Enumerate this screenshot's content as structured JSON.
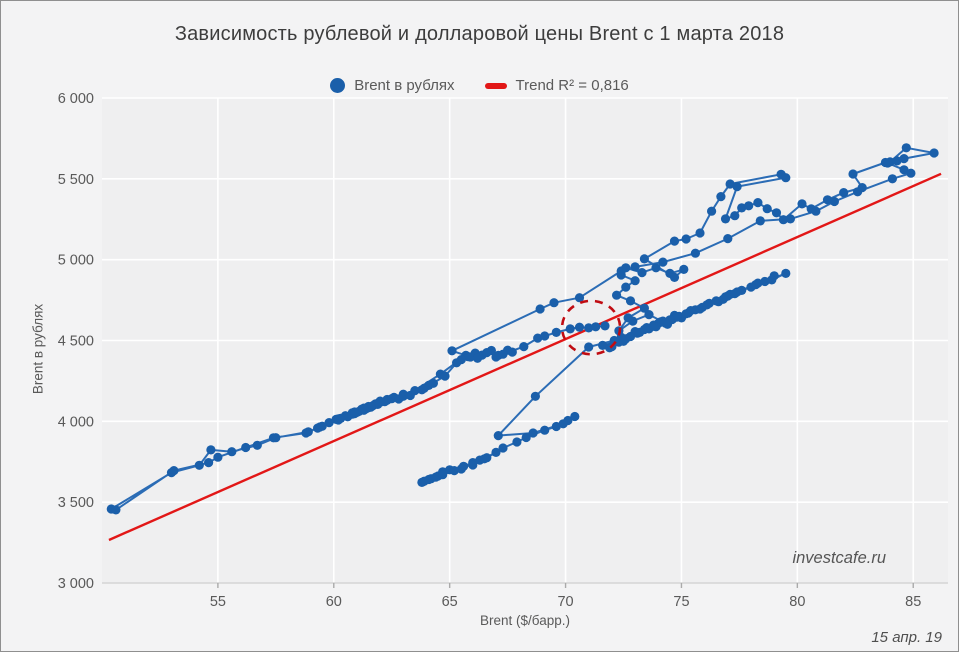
{
  "title": "Зависимость рублевой и долларовой цены Brent с 1 марта 2018",
  "watermark": "investcafe.ru",
  "date_note": "15 апр. 19",
  "chart_data": {
    "type": "scatter",
    "title": "Зависимость рублевой и долларовой цены Brent с 1 марта 2018",
    "xlabel": "Brent ($/барр.)",
    "ylabel": "Brent в рублях",
    "xlim": [
      50,
      86.5
    ],
    "ylim": [
      3000,
      6000
    ],
    "grid": true,
    "legend_position": "top-center",
    "xticks": [
      55,
      60,
      65,
      70,
      75,
      80,
      85
    ],
    "yticks": [
      {
        "v": 3000,
        "label": "3 000"
      },
      {
        "v": 3500,
        "label": "3 500"
      },
      {
        "v": 4000,
        "label": "4 000"
      },
      {
        "v": 4500,
        "label": "4 500"
      },
      {
        "v": 5000,
        "label": "5 000"
      },
      {
        "v": 5500,
        "label": "5 500"
      },
      {
        "v": 6000,
        "label": "6 000"
      }
    ],
    "legend": [
      {
        "label": "Brent в рублях",
        "marker": "circle",
        "color": "#1a5faa"
      },
      {
        "label": "Trend R² = 0,816",
        "marker": "dash",
        "color": "#e21717"
      }
    ],
    "trendline": {
      "label": "Trend R² = 0,816",
      "r2": "0,816",
      "color": "#e21717",
      "x": [
        50.3,
        86.2
      ],
      "y": [
        3266,
        5531
      ]
    },
    "highlight_circle": {
      "cx": 71.1,
      "cy": 4580,
      "rx": 1.25,
      "ry": 165,
      "color": "#c00c12",
      "style": "dashed"
    },
    "series": [
      {
        "name": "Brent в рублях",
        "color_line": "#2b6cb5",
        "color_marker": "#1a5faa",
        "points": [
          [
            63.8,
            3622
          ],
          [
            64.2,
            3645
          ],
          [
            63.9,
            3630
          ],
          [
            64.5,
            3662
          ],
          [
            64.1,
            3640
          ],
          [
            64.7,
            3688
          ],
          [
            64.4,
            3655
          ],
          [
            65.0,
            3700
          ],
          [
            64.7,
            3670
          ],
          [
            65.2,
            3695
          ],
          [
            65.6,
            3722
          ],
          [
            66.0,
            3745
          ],
          [
            65.5,
            3705
          ],
          [
            66.3,
            3760
          ],
          [
            66.0,
            3730
          ],
          [
            66.6,
            3775
          ],
          [
            67.0,
            3808
          ],
          [
            66.5,
            3768
          ],
          [
            67.3,
            3835
          ],
          [
            67.9,
            3872
          ],
          [
            68.3,
            3900
          ],
          [
            69.1,
            3945
          ],
          [
            69.6,
            3968
          ],
          [
            70.1,
            4005
          ],
          [
            70.4,
            4030
          ],
          [
            69.9,
            3985
          ],
          [
            68.6,
            3928
          ],
          [
            67.1,
            3912
          ],
          [
            68.7,
            4155
          ],
          [
            71.0,
            4460
          ],
          [
            72.1,
            4500
          ],
          [
            71.6,
            4470
          ],
          [
            72.4,
            4520
          ],
          [
            73.0,
            4555
          ],
          [
            72.5,
            4505
          ],
          [
            73.5,
            4580
          ],
          [
            74.2,
            4620
          ],
          [
            73.8,
            4595
          ],
          [
            74.7,
            4655
          ],
          [
            74.1,
            4615
          ],
          [
            75.0,
            4640
          ],
          [
            74.4,
            4600
          ],
          [
            75.6,
            4690
          ],
          [
            76.2,
            4730
          ],
          [
            75.3,
            4670
          ],
          [
            76.9,
            4770
          ],
          [
            77.6,
            4810
          ],
          [
            78.3,
            4855
          ],
          [
            79.0,
            4900
          ],
          [
            78.2,
            4845
          ],
          [
            77.4,
            4800
          ],
          [
            76.5,
            4745
          ],
          [
            77.1,
            4785
          ],
          [
            78.6,
            4865
          ],
          [
            79.5,
            4915
          ],
          [
            78.9,
            4875
          ],
          [
            78.0,
            4830
          ],
          [
            77.0,
            4775
          ],
          [
            76.1,
            4720
          ],
          [
            75.4,
            4685
          ],
          [
            74.6,
            4630
          ],
          [
            73.4,
            4568
          ],
          [
            72.6,
            4510
          ],
          [
            71.9,
            4455
          ],
          [
            72.3,
            4490
          ],
          [
            73.1,
            4545
          ],
          [
            74.0,
            4605
          ],
          [
            74.9,
            4650
          ],
          [
            75.8,
            4695
          ],
          [
            76.6,
            4740
          ],
          [
            77.3,
            4790
          ],
          [
            76.8,
            4755
          ],
          [
            75.9,
            4705
          ],
          [
            74.8,
            4645
          ],
          [
            73.9,
            4585
          ],
          [
            73.2,
            4550
          ],
          [
            72.5,
            4495
          ],
          [
            72.0,
            4462
          ],
          [
            72.8,
            4525
          ],
          [
            73.6,
            4572
          ],
          [
            74.4,
            4612
          ],
          [
            75.2,
            4665
          ],
          [
            74.5,
            4628
          ],
          [
            73.8,
            4588
          ],
          [
            74.3,
            4608
          ],
          [
            73.6,
            4660
          ],
          [
            72.9,
            4620
          ],
          [
            72.3,
            4560
          ],
          [
            72.7,
            4640
          ],
          [
            73.4,
            4700
          ],
          [
            72.8,
            4745
          ],
          [
            72.2,
            4780
          ],
          [
            72.6,
            4830
          ],
          [
            73.0,
            4870
          ],
          [
            72.4,
            4905
          ],
          [
            72.6,
            4950
          ],
          [
            73.3,
            4920
          ],
          [
            73.9,
            4950
          ],
          [
            74.5,
            4915
          ],
          [
            75.1,
            4940
          ],
          [
            74.7,
            4890
          ],
          [
            73.4,
            5005
          ],
          [
            74.7,
            5115
          ],
          [
            75.2,
            5128
          ],
          [
            75.8,
            5165
          ],
          [
            76.3,
            5300
          ],
          [
            76.7,
            5390
          ],
          [
            77.1,
            5468
          ],
          [
            79.3,
            5528
          ],
          [
            79.5,
            5507
          ],
          [
            77.4,
            5452
          ],
          [
            76.9,
            5252
          ],
          [
            77.3,
            5272
          ],
          [
            77.6,
            5320
          ],
          [
            77.9,
            5333
          ],
          [
            78.3,
            5353
          ],
          [
            78.7,
            5315
          ],
          [
            79.1,
            5290
          ],
          [
            79.4,
            5247
          ],
          [
            80.2,
            5345
          ],
          [
            80.6,
            5314
          ],
          [
            81.3,
            5370
          ],
          [
            82.0,
            5415
          ],
          [
            82.8,
            5446
          ],
          [
            82.4,
            5530
          ],
          [
            83.8,
            5601
          ],
          [
            84.0,
            5605
          ],
          [
            84.7,
            5692
          ],
          [
            85.9,
            5660
          ],
          [
            84.6,
            5625
          ],
          [
            84.3,
            5611
          ],
          [
            83.9,
            5598
          ],
          [
            84.6,
            5556
          ],
          [
            84.9,
            5535
          ],
          [
            84.1,
            5500
          ],
          [
            82.6,
            5420
          ],
          [
            81.6,
            5360
          ],
          [
            80.8,
            5300
          ],
          [
            79.7,
            5252
          ],
          [
            78.4,
            5240
          ],
          [
            77.0,
            5130
          ],
          [
            75.6,
            5040
          ],
          [
            74.2,
            4985
          ],
          [
            73.0,
            4955
          ],
          [
            72.4,
            4930
          ],
          [
            70.6,
            4765
          ],
          [
            69.5,
            4734
          ],
          [
            68.9,
            4695
          ],
          [
            65.1,
            4436
          ],
          [
            65.7,
            4408
          ],
          [
            64.6,
            4292
          ],
          [
            63.5,
            4190
          ],
          [
            64.1,
            4222
          ],
          [
            63.0,
            4168
          ],
          [
            62.3,
            4130
          ],
          [
            61.5,
            4085
          ],
          [
            60.8,
            4045
          ],
          [
            61.3,
            4068
          ],
          [
            60.2,
            4015
          ],
          [
            59.4,
            3965
          ],
          [
            58.9,
            3935
          ],
          [
            57.5,
            3899
          ],
          [
            56.7,
            3852
          ],
          [
            55.6,
            3812
          ],
          [
            54.7,
            3823
          ],
          [
            54.2,
            3728
          ],
          [
            53.0,
            3683
          ],
          [
            50.4,
            3458
          ],
          [
            50.6,
            3452
          ],
          [
            53.1,
            3695
          ],
          [
            54.6,
            3745
          ],
          [
            55.0,
            3778
          ],
          [
            56.2,
            3838
          ],
          [
            57.4,
            3898
          ],
          [
            58.8,
            3928
          ],
          [
            59.3,
            3958
          ],
          [
            59.8,
            3992
          ],
          [
            59.5,
            3970
          ],
          [
            60.1,
            4012
          ],
          [
            60.5,
            4035
          ],
          [
            60.2,
            4008
          ],
          [
            60.8,
            4052
          ],
          [
            61.2,
            4075
          ],
          [
            60.9,
            4048
          ],
          [
            61.5,
            4092
          ],
          [
            61.1,
            4062
          ],
          [
            61.8,
            4108
          ],
          [
            61.4,
            4078
          ],
          [
            62.0,
            4118
          ],
          [
            61.7,
            4098
          ],
          [
            62.3,
            4135
          ],
          [
            61.9,
            4105
          ],
          [
            62.6,
            4148
          ],
          [
            62.2,
            4122
          ],
          [
            61.6,
            4088
          ],
          [
            61.0,
            4055
          ],
          [
            60.6,
            4028
          ],
          [
            60.3,
            4018
          ],
          [
            60.9,
            4058
          ],
          [
            61.3,
            4082
          ],
          [
            62.0,
            4125
          ],
          [
            62.5,
            4140
          ],
          [
            63.0,
            4155
          ],
          [
            62.8,
            4138
          ],
          [
            63.3,
            4160
          ],
          [
            63.8,
            4195
          ],
          [
            64.3,
            4235
          ],
          [
            63.9,
            4205
          ],
          [
            64.8,
            4280
          ],
          [
            65.3,
            4362
          ],
          [
            65.8,
            4400
          ],
          [
            65.5,
            4382
          ],
          [
            66.1,
            4422
          ],
          [
            65.9,
            4398
          ],
          [
            66.4,
            4410
          ],
          [
            66.8,
            4438
          ],
          [
            66.2,
            4390
          ],
          [
            66.6,
            4425
          ],
          [
            67.1,
            4408
          ],
          [
            67.5,
            4440
          ],
          [
            67.0,
            4398
          ],
          [
            67.7,
            4428
          ],
          [
            67.3,
            4415
          ],
          [
            68.2,
            4462
          ],
          [
            68.8,
            4515
          ],
          [
            69.1,
            4528
          ],
          [
            69.6,
            4550
          ],
          [
            70.2,
            4572
          ],
          [
            70.6,
            4582
          ],
          [
            71.0,
            4578
          ],
          [
            71.3,
            4585
          ],
          [
            71.7,
            4590
          ]
        ]
      }
    ]
  }
}
